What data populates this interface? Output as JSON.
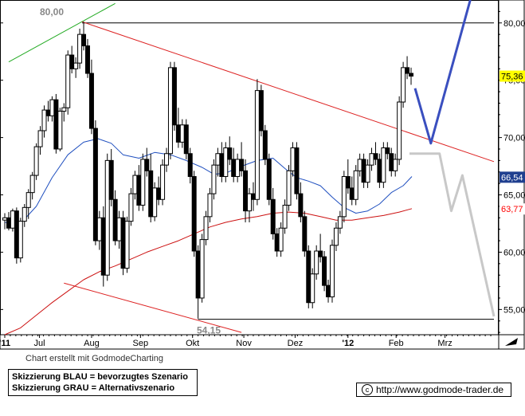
{
  "chart_data": {
    "type": "candlestick",
    "y_ticks": [
      "80,00",
      "75,00",
      "70,00",
      "65,00",
      "60,00",
      "55,00"
    ],
    "y_tick_values": [
      80,
      75,
      70,
      65,
      60,
      55
    ],
    "ylim": [
      52.8,
      82.0
    ],
    "x_ticks": [
      "'11",
      "Jul",
      "Aug",
      "Sep",
      "Okt",
      "Nov",
      "Dez",
      "'12",
      "Feb",
      "Mrz"
    ],
    "x_tick_days": [
      0,
      44,
      110,
      172,
      238,
      303,
      368,
      435,
      496,
      558
    ],
    "x_domain_days": [
      0,
      620
    ],
    "price_labels": [
      {
        "text": "75,36",
        "value": 75.36,
        "color": "#000000",
        "bg": "#ffff00"
      },
      {
        "text": "66,54",
        "value": 66.54,
        "color": "#ffffff",
        "bg": "#1f3f8f"
      },
      {
        "text": "63,77",
        "value": 63.77,
        "color": "#ff0000",
        "bg": "#ffffff"
      }
    ],
    "annotations": {
      "high_label": "80,00",
      "high_value": 80.0,
      "low_label": "54,15",
      "low_value": 54.15
    },
    "horizontal_lines": [
      {
        "value": 80.0,
        "from_day": 98,
        "to_day": 620,
        "color": "#000000"
      },
      {
        "value": 54.15,
        "from_day": 245,
        "to_day": 620,
        "color": "#000000"
      }
    ],
    "trendlines": [
      {
        "name": "green-uptrend",
        "color": "#22aa22",
        "points": [
          [
            5,
            76.6
          ],
          [
            140,
            81.7
          ]
        ]
      },
      {
        "name": "red-downtrend",
        "color": "#dd2222",
        "points": [
          [
            98,
            80.1
          ],
          [
            620,
            67.9
          ]
        ]
      },
      {
        "name": "red-lower-channel",
        "color": "#dd2222",
        "points": [
          [
            75,
            57.3
          ],
          [
            300,
            53.0
          ]
        ]
      }
    ],
    "series": [
      {
        "name": "",
        "kind": "sma",
        "color": "#1f4fbf",
        "points": [
          [
            0,
            62.6
          ],
          [
            20,
            62.5
          ],
          [
            40,
            64.0
          ],
          [
            60,
            66.5
          ],
          [
            80,
            68.5
          ],
          [
            100,
            69.6
          ],
          [
            118,
            69.9
          ],
          [
            135,
            69.5
          ],
          [
            150,
            68.5
          ],
          [
            170,
            68.2
          ],
          [
            190,
            68.7
          ],
          [
            210,
            68.5
          ],
          [
            230,
            68.0
          ],
          [
            250,
            67.4
          ],
          [
            265,
            66.8
          ],
          [
            280,
            66.9
          ],
          [
            300,
            67.5
          ],
          [
            320,
            68.0
          ],
          [
            340,
            68.2
          ],
          [
            355,
            67.3
          ],
          [
            370,
            66.5
          ],
          [
            385,
            66.2
          ],
          [
            400,
            65.8
          ],
          [
            415,
            64.8
          ],
          [
            430,
            63.9
          ],
          [
            445,
            63.4
          ],
          [
            460,
            63.6
          ],
          [
            475,
            64.2
          ],
          [
            490,
            65.2
          ],
          [
            505,
            65.8
          ],
          [
            516,
            66.6
          ]
        ]
      },
      {
        "name": "",
        "kind": "sma",
        "color": "#cc1111",
        "points": [
          [
            0,
            52.8
          ],
          [
            20,
            53.4
          ],
          [
            40,
            54.5
          ],
          [
            60,
            55.6
          ],
          [
            80,
            56.6
          ],
          [
            100,
            57.6
          ],
          [
            120,
            58.3
          ],
          [
            140,
            58.8
          ],
          [
            160,
            59.4
          ],
          [
            180,
            60.0
          ],
          [
            200,
            60.5
          ],
          [
            220,
            61.0
          ],
          [
            240,
            61.6
          ],
          [
            260,
            62.2
          ],
          [
            280,
            62.6
          ],
          [
            300,
            62.9
          ],
          [
            320,
            63.1
          ],
          [
            340,
            63.4
          ],
          [
            360,
            63.5
          ],
          [
            380,
            63.4
          ],
          [
            400,
            63.1
          ],
          [
            420,
            62.8
          ],
          [
            440,
            62.8
          ],
          [
            460,
            63.0
          ],
          [
            480,
            63.2
          ],
          [
            500,
            63.5
          ],
          [
            516,
            63.8
          ]
        ]
      },
      {
        "name": "",
        "kind": "scenario",
        "color": "#3a4fbf",
        "points": [
          [
            520,
            74.3
          ],
          [
            540,
            69.5
          ],
          [
            590,
            82.0
          ]
        ]
      },
      {
        "name": "",
        "kind": "scenario",
        "color": "#c8c8c8",
        "points": [
          [
            513,
            68.6
          ],
          [
            551,
            68.6
          ],
          [
            566,
            63.6
          ],
          [
            580,
            66.7
          ],
          [
            620,
            54.4
          ]
        ]
      }
    ],
    "candles": [
      [
        0,
        62.8,
        63.4,
        62.0,
        63.0
      ],
      [
        5,
        63.0,
        63.5,
        61.9,
        62.1
      ],
      [
        10,
        62.1,
        63.8,
        61.8,
        63.6
      ],
      [
        15,
        63.6,
        63.9,
        59.0,
        59.5
      ],
      [
        20,
        59.5,
        63.0,
        59.1,
        62.7
      ],
      [
        25,
        62.7,
        64.2,
        62.2,
        63.9
      ],
      [
        30,
        63.9,
        65.5,
        62.9,
        65.2
      ],
      [
        35,
        65.2,
        67.0,
        64.6,
        66.7
      ],
      [
        40,
        66.7,
        69.5,
        66.3,
        69.2
      ],
      [
        45,
        69.2,
        71.0,
        68.5,
        70.6
      ],
      [
        50,
        70.6,
        72.8,
        70.0,
        72.4
      ],
      [
        55,
        72.4,
        73.2,
        71.4,
        71.9
      ],
      [
        60,
        71.9,
        73.6,
        71.4,
        73.3
      ],
      [
        65,
        73.3,
        73.8,
        68.6,
        69.0
      ],
      [
        70,
        69.0,
        72.6,
        68.8,
        72.3
      ],
      [
        75,
        72.3,
        73.0,
        71.4,
        72.6
      ],
      [
        80,
        72.6,
        77.6,
        72.0,
        77.2
      ],
      [
        85,
        77.2,
        78.0,
        75.6,
        76.0
      ],
      [
        90,
        76.0,
        77.0,
        75.2,
        76.5
      ],
      [
        95,
        76.5,
        79.5,
        76.0,
        79.0
      ],
      [
        100,
        79.0,
        80.1,
        77.6,
        78.0
      ],
      [
        105,
        78.0,
        78.6,
        75.2,
        75.6
      ],
      [
        110,
        75.6,
        76.8,
        70.3,
        70.8
      ],
      [
        115,
        70.8,
        71.5,
        60.6,
        61.0
      ],
      [
        120,
        61.0,
        63.6,
        60.2,
        63.0
      ],
      [
        125,
        63.0,
        64.0,
        57.0,
        58.0
      ],
      [
        130,
        58.0,
        68.6,
        57.5,
        68.0
      ],
      [
        135,
        68.0,
        69.0,
        64.0,
        64.6
      ],
      [
        140,
        64.6,
        65.4,
        60.6,
        61.0
      ],
      [
        145,
        61.0,
        63.6,
        60.3,
        63.0
      ],
      [
        150,
        63.0,
        63.6,
        58.0,
        58.6
      ],
      [
        155,
        58.6,
        63.1,
        58.2,
        62.7
      ],
      [
        160,
        62.7,
        65.6,
        62.3,
        65.1
      ],
      [
        165,
        65.1,
        67.1,
        64.6,
        66.7
      ],
      [
        170,
        66.7,
        67.6,
        63.6,
        64.1
      ],
      [
        175,
        64.1,
        68.6,
        63.6,
        68.1
      ],
      [
        180,
        68.1,
        69.1,
        66.6,
        67.1
      ],
      [
        185,
        67.1,
        68.6,
        62.6,
        63.1
      ],
      [
        190,
        63.1,
        66.1,
        62.7,
        65.6
      ],
      [
        195,
        65.6,
        66.6,
        64.1,
        64.6
      ],
      [
        200,
        64.6,
        68.1,
        64.1,
        67.6
      ],
      [
        205,
        67.6,
        69.1,
        67.0,
        68.6
      ],
      [
        210,
        68.6,
        76.6,
        68.1,
        76.1
      ],
      [
        215,
        76.1,
        76.6,
        70.6,
        71.1
      ],
      [
        220,
        71.1,
        72.6,
        69.1,
        69.6
      ],
      [
        225,
        69.6,
        71.6,
        69.1,
        71.1
      ],
      [
        230,
        71.1,
        71.6,
        68.1,
        68.6
      ],
      [
        235,
        68.6,
        69.1,
        66.0,
        66.6
      ],
      [
        240,
        66.6,
        67.1,
        59.6,
        60.1
      ],
      [
        245,
        60.1,
        60.6,
        54.2,
        56.0
      ],
      [
        250,
        56.0,
        61.6,
        55.6,
        61.1
      ],
      [
        255,
        61.1,
        63.6,
        60.6,
        63.1
      ],
      [
        260,
        63.1,
        65.6,
        62.6,
        65.1
      ],
      [
        265,
        65.1,
        68.1,
        64.6,
        67.6
      ],
      [
        270,
        67.6,
        69.1,
        66.6,
        68.6
      ],
      [
        275,
        68.6,
        69.6,
        66.1,
        66.6
      ],
      [
        280,
        66.6,
        69.6,
        66.1,
        69.1
      ],
      [
        285,
        69.1,
        70.1,
        67.6,
        68.1
      ],
      [
        290,
        68.1,
        69.1,
        66.1,
        66.6
      ],
      [
        295,
        66.6,
        68.6,
        66.1,
        68.1
      ],
      [
        300,
        68.1,
        69.6,
        66.6,
        67.1
      ],
      [
        305,
        67.1,
        68.1,
        62.6,
        63.6
      ],
      [
        310,
        63.6,
        65.6,
        62.6,
        65.1
      ],
      [
        315,
        65.1,
        66.1,
        63.6,
        64.6
      ],
      [
        320,
        64.6,
        75.1,
        64.1,
        74.1
      ],
      [
        325,
        74.1,
        74.6,
        70.1,
        70.6
      ],
      [
        330,
        70.6,
        71.1,
        67.6,
        68.1
      ],
      [
        335,
        68.1,
        68.6,
        64.1,
        64.6
      ],
      [
        340,
        64.6,
        65.6,
        61.1,
        61.6
      ],
      [
        345,
        61.6,
        62.1,
        59.6,
        60.1
      ],
      [
        350,
        60.1,
        62.6,
        59.6,
        62.1
      ],
      [
        355,
        62.1,
        64.6,
        61.6,
        64.1
      ],
      [
        360,
        64.1,
        67.6,
        63.6,
        67.1
      ],
      [
        365,
        67.1,
        69.6,
        66.6,
        69.1
      ],
      [
        370,
        69.1,
        69.6,
        64.6,
        65.1
      ],
      [
        375,
        65.1,
        66.1,
        62.6,
        63.1
      ],
      [
        380,
        63.1,
        63.6,
        59.6,
        60.1
      ],
      [
        385,
        60.1,
        60.6,
        55.1,
        55.6
      ],
      [
        390,
        55.6,
        58.6,
        55.1,
        58.1
      ],
      [
        395,
        58.1,
        60.6,
        57.6,
        60.1
      ],
      [
        400,
        60.1,
        61.6,
        59.1,
        59.6
      ],
      [
        405,
        59.6,
        60.1,
        56.6,
        57.1
      ],
      [
        410,
        57.1,
        57.6,
        55.6,
        56.1
      ],
      [
        415,
        56.1,
        61.1,
        55.6,
        60.6
      ],
      [
        420,
        60.6,
        62.6,
        60.1,
        62.1
      ],
      [
        425,
        62.1,
        63.6,
        61.6,
        63.1
      ],
      [
        430,
        63.1,
        67.1,
        62.6,
        66.6
      ],
      [
        435,
        66.6,
        68.1,
        65.1,
        65.6
      ],
      [
        440,
        65.6,
        66.6,
        64.1,
        64.6
      ],
      [
        445,
        64.6,
        67.6,
        64.1,
        67.1
      ],
      [
        450,
        67.1,
        68.6,
        66.6,
        68.1
      ],
      [
        455,
        68.1,
        68.6,
        65.6,
        66.1
      ],
      [
        460,
        66.1,
        68.1,
        65.6,
        67.6
      ],
      [
        465,
        67.6,
        69.1,
        67.1,
        68.6
      ],
      [
        470,
        68.6,
        69.6,
        67.6,
        68.1
      ],
      [
        475,
        68.1,
        68.6,
        65.6,
        66.1
      ],
      [
        480,
        66.1,
        69.6,
        65.6,
        69.1
      ],
      [
        485,
        69.1,
        69.6,
        68.1,
        68.6
      ],
      [
        490,
        68.6,
        69.1,
        66.6,
        67.1
      ],
      [
        495,
        67.1,
        68.6,
        66.6,
        68.1
      ],
      [
        500,
        68.1,
        73.6,
        67.6,
        73.1
      ],
      [
        505,
        73.1,
        76.6,
        72.6,
        76.1
      ],
      [
        510,
        76.1,
        77.1,
        75.1,
        75.6
      ],
      [
        515,
        75.6,
        76.1,
        74.6,
        75.36
      ]
    ]
  },
  "texts": {
    "credit": "Chart erstellt mit GodmodeCharting",
    "legend_line1": "Skizzierung BLAU = bevorzugtes Szenario",
    "legend_line2": "Skizzierung GRAU = Alternativszenario",
    "copyright_symbol": "c",
    "url": "http://www.godmode-trader.de"
  }
}
